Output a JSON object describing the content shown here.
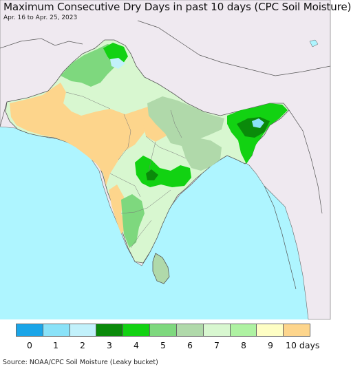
{
  "title": "Maximum Consecutive Dry Days in past 10 days (CPC Soil Moisture)",
  "subtitle": "Apr. 16 to Apr. 25, 2023",
  "source": "Source: NOAA/CPC Soil Moisture (Leaky bucket)",
  "colors": {
    "ocean": "#aef5ff",
    "land_outside": "#efe9f0",
    "border": "#555555"
  },
  "legend": [
    {
      "label": "0",
      "color": "#1aa5e8"
    },
    {
      "label": "1",
      "color": "#8ae2f8"
    },
    {
      "label": "2",
      "color": "#c2f1fb"
    },
    {
      "label": "3",
      "color": "#0a8a0a"
    },
    {
      "label": "4",
      "color": "#12d212"
    },
    {
      "label": "5",
      "color": "#7ed87e"
    },
    {
      "label": "6",
      "color": "#b0d9aa"
    },
    {
      "label": "7",
      "color": "#d8f7d0"
    },
    {
      "label": "8",
      "color": "#aef2a2"
    },
    {
      "label": "9",
      "color": "#fefec4"
    },
    {
      "label": "10 days",
      "color": "#fdd58c"
    }
  ]
}
